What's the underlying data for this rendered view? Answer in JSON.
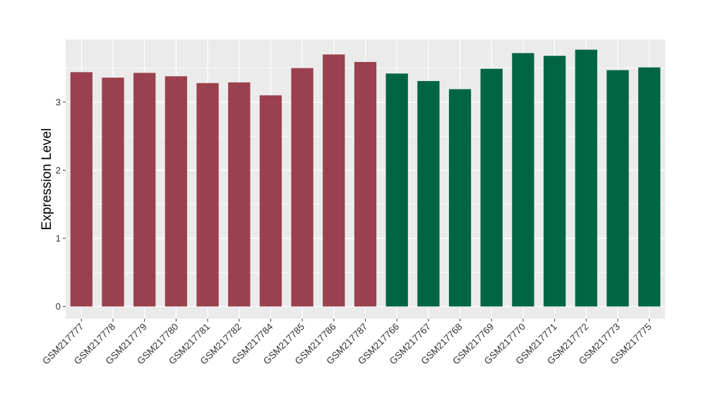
{
  "chart_data": {
    "type": "bar",
    "title": "",
    "xlabel": "",
    "ylabel": "Expression Level",
    "ylim": [
      -0.18,
      3.92
    ],
    "yticks": [
      0,
      1,
      2,
      3
    ],
    "grid": true,
    "legend": "none",
    "categories": [
      "GSM217777",
      "GSM217778",
      "GSM217779",
      "GSM217780",
      "GSM217781",
      "GSM217782",
      "GSM217784",
      "GSM217785",
      "GSM217786",
      "GSM217787",
      "GSM217766",
      "GSM217767",
      "GSM217768",
      "GSM217769",
      "GSM217770",
      "GSM217771",
      "GSM217772",
      "GSM217773",
      "GSM217775"
    ],
    "values": [
      3.44,
      3.36,
      3.43,
      3.38,
      3.28,
      3.29,
      3.1,
      3.5,
      3.7,
      3.59,
      3.42,
      3.31,
      3.19,
      3.49,
      3.72,
      3.68,
      3.77,
      3.47,
      3.51
    ],
    "group_index": [
      0,
      0,
      0,
      0,
      0,
      0,
      0,
      0,
      0,
      0,
      1,
      1,
      1,
      1,
      1,
      1,
      1,
      1,
      1
    ],
    "group_colors": [
      "#9b404e",
      "#006543"
    ],
    "panel_color": "#ebebeb",
    "grid_color": "#ffffff"
  }
}
